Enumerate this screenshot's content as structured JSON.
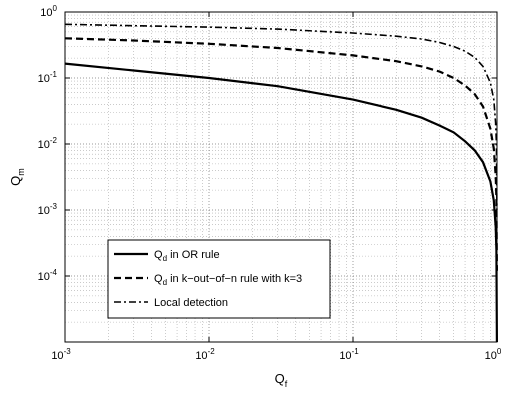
{
  "chart_data": {
    "type": "line",
    "title": "",
    "xlabel": {
      "main": "Q",
      "sub": "f"
    },
    "ylabel": {
      "main": "Q",
      "sub": "m"
    },
    "xscale": "log",
    "yscale": "log",
    "xlim": [
      0.001,
      1
    ],
    "ylim": [
      1e-05,
      1
    ],
    "grid": true,
    "legend_position": "lower-left",
    "x_ticks": [
      {
        "base": "10",
        "exp": "-3",
        "value": 0.001
      },
      {
        "base": "10",
        "exp": "-2",
        "value": 0.01
      },
      {
        "base": "10",
        "exp": "-1",
        "value": 0.1
      },
      {
        "base": "10",
        "exp": "0",
        "value": 1
      }
    ],
    "y_ticks": [
      {
        "base": "10",
        "exp": "-4",
        "value": 0.0001
      },
      {
        "base": "10",
        "exp": "-3",
        "value": 0.001
      },
      {
        "base": "10",
        "exp": "-2",
        "value": 0.01
      },
      {
        "base": "10",
        "exp": "-1",
        "value": 0.1
      },
      {
        "base": "10",
        "exp": "0",
        "value": 1
      }
    ],
    "series": [
      {
        "legend": {
          "main": "Q",
          "sub": "d",
          "rest": " in OR rule"
        },
        "style": "solid",
        "x": [
          0.001,
          0.003,
          0.01,
          0.03,
          0.1,
          0.2,
          0.3,
          0.4,
          0.5,
          0.6,
          0.7,
          0.8,
          0.9,
          0.95,
          0.98,
          0.99,
          0.999
        ],
        "y": [
          0.165,
          0.13,
          0.1,
          0.075,
          0.047,
          0.033,
          0.025,
          0.019,
          0.015,
          0.011,
          0.008,
          0.0053,
          0.0027,
          0.0014,
          0.00055,
          0.00025,
          1e-05
        ]
      },
      {
        "legend": {
          "main": "Q",
          "sub": "d",
          "rest": " in k−out−of−n rule with k=3"
        },
        "style": "dashed",
        "x": [
          0.001,
          0.003,
          0.01,
          0.03,
          0.1,
          0.2,
          0.3,
          0.4,
          0.5,
          0.6,
          0.7,
          0.8,
          0.9,
          0.95,
          0.98,
          0.99,
          0.999
        ],
        "y": [
          0.4,
          0.37,
          0.33,
          0.285,
          0.22,
          0.18,
          0.15,
          0.125,
          0.1,
          0.077,
          0.057,
          0.037,
          0.017,
          0.0085,
          0.0033,
          0.0015,
          0.00012
        ]
      },
      {
        "legend": {
          "main": "",
          "sub": "",
          "rest": "Local detection"
        },
        "style": "dashdot",
        "x": [
          0.001,
          0.003,
          0.01,
          0.03,
          0.1,
          0.2,
          0.3,
          0.4,
          0.5,
          0.6,
          0.7,
          0.8,
          0.9,
          0.95,
          0.98,
          0.99,
          0.999
        ],
        "y": [
          0.65,
          0.62,
          0.59,
          0.55,
          0.48,
          0.43,
          0.39,
          0.345,
          0.3,
          0.255,
          0.205,
          0.15,
          0.085,
          0.047,
          0.02,
          0.01,
          0.001
        ]
      }
    ]
  }
}
